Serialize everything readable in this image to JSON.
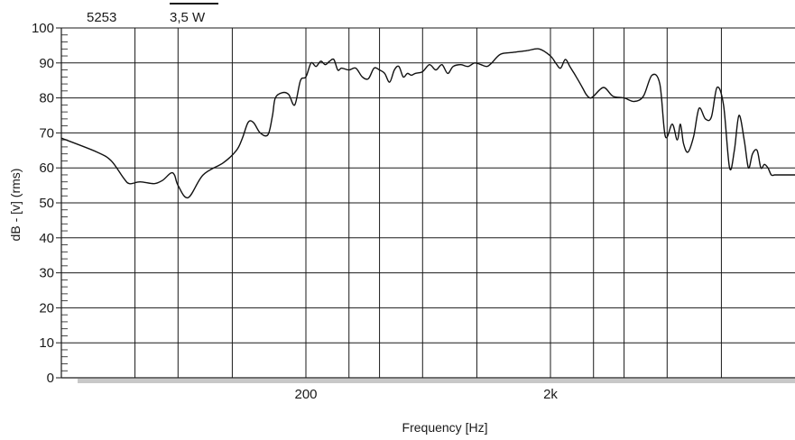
{
  "chart_data": {
    "type": "line",
    "model_label": "5253",
    "power_label": "3,5 W",
    "xlabel": "Frequency [Hz]",
    "ylabel": "dB - [v]  (rms)",
    "x_scale": "log",
    "xlim": [
      20,
      20000
    ],
    "ylim": [
      0,
      100
    ],
    "y_ticks": [
      0,
      10,
      20,
      30,
      40,
      50,
      60,
      70,
      80,
      90,
      100
    ],
    "x_tick_labels": [
      {
        "value": 200,
        "label": "200"
      },
      {
        "value": 2000,
        "label": "2k"
      }
    ],
    "vertical_gridlines_hz": [
      40,
      60,
      100,
      200,
      300,
      400,
      600,
      1000,
      2000,
      3000,
      4000,
      6000,
      10000
    ],
    "grid": true,
    "series": [
      {
        "x": [
          20,
          28,
          32,
          36,
          38,
          42,
          48,
          52,
          56,
          58,
          60,
          66,
          76,
          92,
          104,
          110,
          116,
          122,
          130,
          140,
          146,
          150,
          160,
          170,
          180,
          190,
          200,
          210,
          220,
          230,
          240,
          250,
          260,
          270,
          280,
          300,
          320,
          340,
          360,
          380,
          400,
          420,
          440,
          460,
          480,
          500,
          520,
          540,
          560,
          600,
          640,
          680,
          720,
          760,
          800,
          860,
          920,
          980,
          1040,
          1100,
          1150,
          1250,
          1400,
          1600,
          1800,
          2000,
          2100,
          2200,
          2300,
          2400,
          2500,
          2600,
          2700,
          2800,
          2900,
          3000,
          3300,
          3600,
          4000,
          4400,
          4800,
          5200,
          5600,
          5900,
          6300,
          6600,
          6800,
          7000,
          7300,
          7700,
          8100,
          8600,
          9100,
          9600,
          10200,
          10800,
          11300,
          11800,
          12400,
          12900,
          13400,
          14000,
          14500,
          15000,
          15500,
          16000,
          16500,
          17000,
          17500,
          18000,
          18500,
          19000,
          19500,
          20000
        ],
        "y": [
          68.5,
          64.5,
          62,
          57,
          55.5,
          56,
          55.5,
          56.5,
          58.5,
          58,
          55,
          51.5,
          58,
          61.5,
          65,
          68.5,
          73,
          73,
          70,
          69.5,
          75,
          80,
          81.5,
          81,
          78,
          85,
          86,
          90,
          89,
          90.5,
          89.5,
          90.5,
          91,
          88,
          88.5,
          88,
          88.5,
          86,
          85.5,
          88.5,
          88,
          87,
          84.5,
          88,
          89,
          86,
          87,
          86.5,
          87,
          87.5,
          89.5,
          88,
          89.5,
          87,
          89,
          89.5,
          89,
          90,
          89.5,
          89,
          90,
          92.5,
          93,
          93.5,
          94,
          92,
          90,
          88.5,
          91,
          89,
          87,
          85,
          83,
          81,
          80,
          80.5,
          83,
          80.5,
          80,
          79,
          80.5,
          86.5,
          84,
          69,
          72.5,
          68,
          72.5,
          67,
          64.5,
          69,
          77,
          74,
          74.5,
          83,
          78,
          60,
          65,
          75,
          68,
          60,
          64,
          65,
          60,
          61,
          60,
          58,
          58,
          58,
          58,
          58,
          58,
          58,
          58,
          58
        ]
      }
    ]
  }
}
